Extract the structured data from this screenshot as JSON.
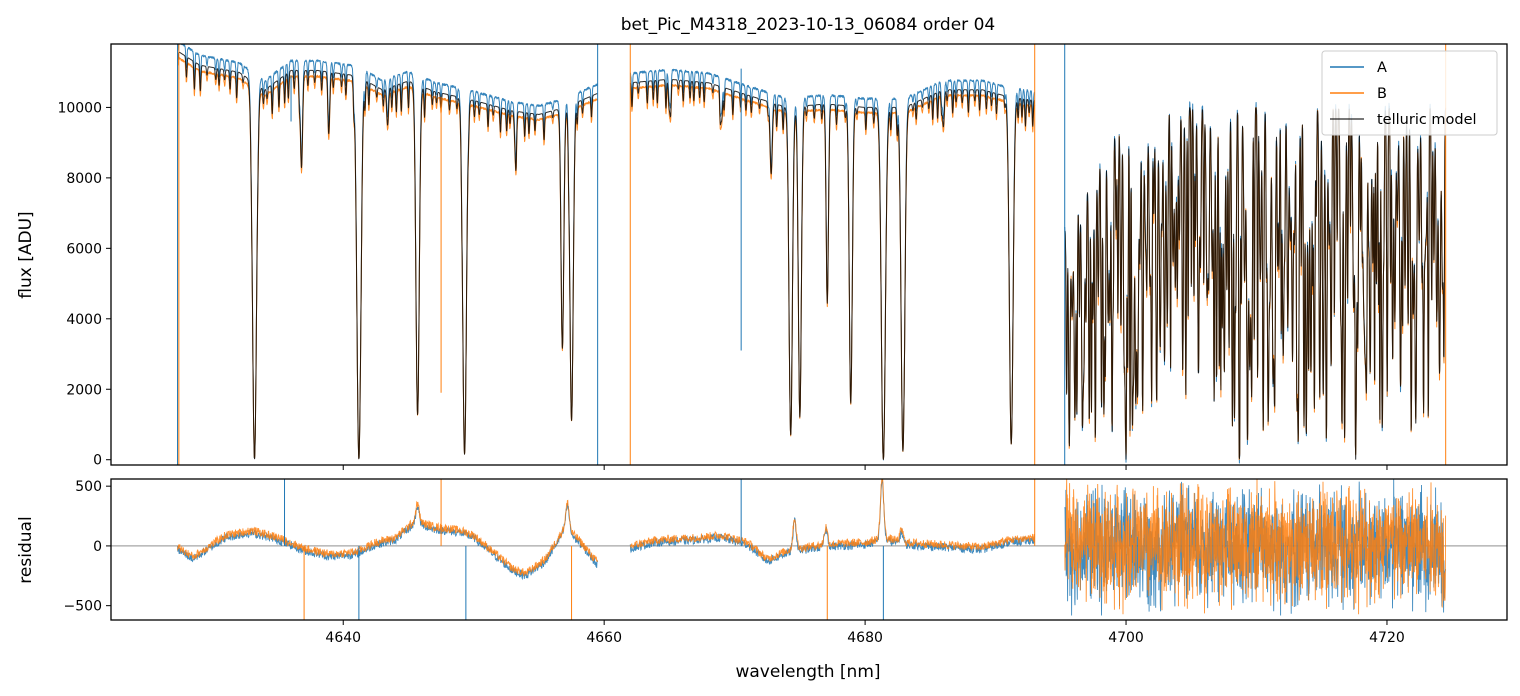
{
  "chart_data": [
    {
      "type": "line",
      "title": "bet_Pic_M4318_2023-10-13_06084  order 04",
      "xlabel": "",
      "ylabel": "flux [ADU]",
      "xlim": [
        4622.2,
        4729.2
      ],
      "ylim": [
        -150,
        11800
      ],
      "yticks": [
        0,
        2000,
        4000,
        6000,
        8000,
        10000
      ],
      "xticks": [
        4640,
        4660,
        4680,
        4700,
        4720
      ],
      "show_xtick_labels": false,
      "legend_position": "top-right",
      "series": [
        {
          "name": "A",
          "color": "#1f77b4"
        },
        {
          "name": "B",
          "color": "#ff7f0e"
        },
        {
          "name": "telluric model",
          "color": "#000000"
        }
      ],
      "segments": [
        [
          4627.3,
          4659.5
        ],
        [
          4662.0,
          4693.0
        ],
        [
          4695.3,
          4724.5
        ]
      ],
      "continuum": [
        [
          4627.3,
          11600
        ],
        [
          4629,
          11200
        ],
        [
          4632,
          11000
        ],
        [
          4634,
          10500
        ],
        [
          4636,
          11050
        ],
        [
          4638,
          11050
        ],
        [
          4641,
          10900
        ],
        [
          4643,
          10500
        ],
        [
          4645,
          10750
        ],
        [
          4647,
          10450
        ],
        [
          4650,
          10200
        ],
        [
          4653,
          9900
        ],
        [
          4655,
          9800
        ],
        [
          4657,
          10000
        ],
        [
          4659.5,
          10400
        ],
        [
          4662,
          10700
        ],
        [
          4665,
          10800
        ],
        [
          4668,
          10700
        ],
        [
          4671,
          10350
        ],
        [
          4674,
          10000
        ],
        [
          4677,
          10100
        ],
        [
          4680,
          10000
        ],
        [
          4683,
          10000
        ],
        [
          4686,
          10500
        ],
        [
          4689,
          10500
        ],
        [
          4691,
          10300
        ],
        [
          4693,
          10200
        ]
      ],
      "absorption_lines": [
        {
          "x": 4633.2,
          "depth": 0.998,
          "width": 0.22
        },
        {
          "x": 4641.2,
          "depth": 0.998,
          "width": 0.22
        },
        {
          "x": 4645.7,
          "depth": 0.88,
          "width": 0.18
        },
        {
          "x": 4649.3,
          "depth": 0.985,
          "width": 0.2
        },
        {
          "x": 4656.8,
          "depth": 0.68,
          "width": 0.15
        },
        {
          "x": 4657.5,
          "depth": 0.89,
          "width": 0.18
        },
        {
          "x": 4674.3,
          "depth": 0.93,
          "width": 0.18
        },
        {
          "x": 4675.0,
          "depth": 0.88,
          "width": 0.16
        },
        {
          "x": 4677.1,
          "depth": 0.56,
          "width": 0.12
        },
        {
          "x": 4678.9,
          "depth": 0.84,
          "width": 0.16
        },
        {
          "x": 4681.4,
          "depth": 0.999,
          "width": 0.22
        },
        {
          "x": 4682.9,
          "depth": 0.975,
          "width": 0.2
        },
        {
          "x": 4691.2,
          "depth": 0.955,
          "width": 0.2
        },
        {
          "x": 4636.8,
          "depth": 0.25,
          "width": 0.12
        },
        {
          "x": 4638.9,
          "depth": 0.15,
          "width": 0.1
        },
        {
          "x": 4643.4,
          "depth": 0.1,
          "width": 0.1
        },
        {
          "x": 4653.2,
          "depth": 0.12,
          "width": 0.1
        },
        {
          "x": 4665.0,
          "depth": 0.08,
          "width": 0.1
        },
        {
          "x": 4669.0,
          "depth": 0.09,
          "width": 0.1
        },
        {
          "x": 4672.8,
          "depth": 0.2,
          "width": 0.12
        },
        {
          "x": 4686.0,
          "depth": 0.1,
          "width": 0.1
        }
      ],
      "forest_range": [
        4695.3,
        4724.5
      ],
      "forest_deep_lines": [
        4700.0,
        4708.7,
        4717.6
      ]
    },
    {
      "type": "line",
      "title": "",
      "xlabel": "wavelength [nm]",
      "ylabel": "residual",
      "xlim": [
        4622.2,
        4729.2
      ],
      "ylim": [
        -620,
        560
      ],
      "yticks": [
        -500,
        0,
        500
      ],
      "ytick_labels": [
        "−500",
        "0",
        "500"
      ],
      "xticks": [
        4640,
        4660,
        4680,
        4700,
        4720
      ],
      "xtick_labels": [
        "4640",
        "4660",
        "4680",
        "4700",
        "4720"
      ],
      "zero_line": 0,
      "baseline": [
        [
          4627.3,
          -20
        ],
        [
          4628.5,
          -100
        ],
        [
          4631,
          80
        ],
        [
          4633,
          120
        ],
        [
          4635,
          60
        ],
        [
          4637,
          -30
        ],
        [
          4639,
          -80
        ],
        [
          4641,
          -60
        ],
        [
          4642.5,
          20
        ],
        [
          4644,
          60
        ],
        [
          4645.5,
          200
        ],
        [
          4647,
          150
        ],
        [
          4649,
          120
        ],
        [
          4650,
          80
        ],
        [
          4651.5,
          -60
        ],
        [
          4653,
          -200
        ],
        [
          4654,
          -240
        ],
        [
          4655.5,
          -120
        ],
        [
          4657,
          150
        ],
        [
          4658,
          50
        ],
        [
          4659.5,
          -150
        ],
        [
          4662,
          -10
        ],
        [
          4664,
          40
        ],
        [
          4667,
          60
        ],
        [
          4669,
          80
        ],
        [
          4671,
          20
        ],
        [
          4672.5,
          -120
        ],
        [
          4674,
          -50
        ],
        [
          4676,
          -10
        ],
        [
          4678,
          10
        ],
        [
          4680,
          20
        ],
        [
          4681.5,
          60
        ],
        [
          4683,
          20
        ],
        [
          4686,
          0
        ],
        [
          4689,
          -20
        ],
        [
          4691,
          40
        ],
        [
          4693,
          60
        ]
      ],
      "features": [
        {
          "x": 4645.7,
          "amp": 150
        },
        {
          "x": 4657.2,
          "amp": 220
        },
        {
          "x": 4674.6,
          "amp": 260
        },
        {
          "x": 4681.3,
          "amp": 500
        },
        {
          "x": 4677.0,
          "amp": 150
        },
        {
          "x": 4682.8,
          "amp": 100
        }
      ],
      "forest_range": [
        4695.3,
        4724.5
      ],
      "forest_amplitude": 400
    }
  ]
}
